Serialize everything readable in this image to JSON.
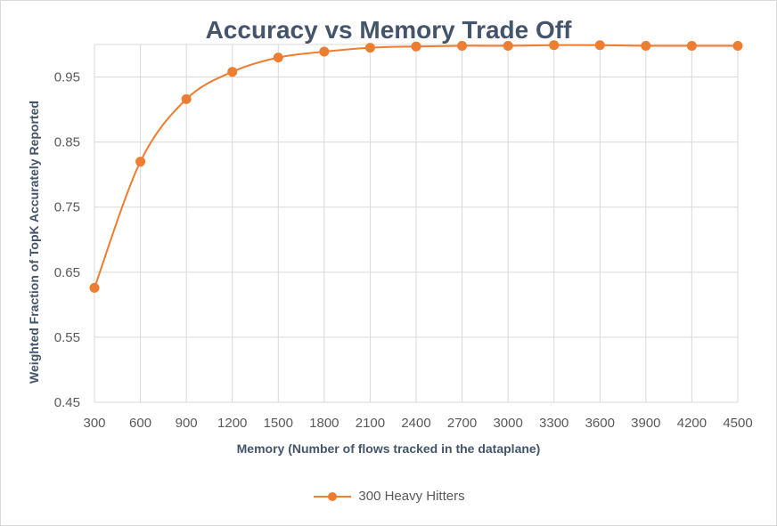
{
  "chart_data": {
    "type": "line",
    "title": "Accuracy vs Memory Trade Off",
    "xlabel": "Memory (Number of flows tracked in the dataplane)",
    "ylabel": "Weighted Fraction of TopK Accurately Reported",
    "x": [
      300,
      600,
      900,
      1200,
      1500,
      1800,
      2100,
      2400,
      2700,
      3000,
      3300,
      3600,
      3900,
      4200,
      4500
    ],
    "x_tick_labels": [
      "300",
      "600",
      "900",
      "1200",
      "1500",
      "1800",
      "2100",
      "2400",
      "2700",
      "3000",
      "3300",
      "3600",
      "3900",
      "4200",
      "4500"
    ],
    "y_tick_labels": [
      "0.45",
      "0.55",
      "0.65",
      "0.75",
      "0.85",
      "0.95"
    ],
    "ylim": [
      0.45,
      1.0
    ],
    "y_ticks": [
      0.45,
      0.55,
      0.65,
      0.75,
      0.85,
      0.95
    ],
    "series": [
      {
        "name": "300 Heavy Hitters",
        "color": "#ed7d31",
        "values": [
          0.626,
          0.82,
          0.916,
          0.958,
          0.98,
          0.989,
          0.995,
          0.997,
          0.998,
          0.998,
          0.999,
          0.999,
          0.998,
          0.998,
          0.998
        ]
      }
    ],
    "grid": true,
    "legend_position": "bottom"
  }
}
